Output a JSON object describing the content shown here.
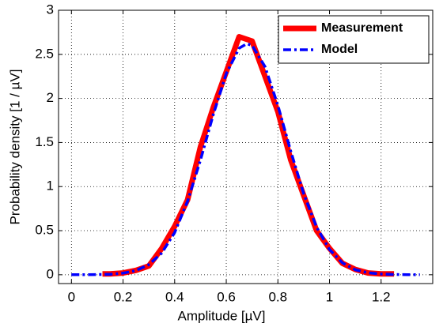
{
  "chart_data": {
    "type": "line",
    "xlabel": "Amplitude  [µV]",
    "ylabel": "Probability density  [1 / µV]",
    "xlim": [
      -0.05,
      1.4
    ],
    "xticks": [
      0,
      0.2,
      0.4,
      0.6,
      0.8,
      1,
      1.2
    ],
    "ylim": [
      -0.1,
      3
    ],
    "yticks": [
      0,
      0.5,
      1,
      1.5,
      2,
      2.5,
      3
    ],
    "grid": true,
    "legend": "upper right",
    "series": [
      {
        "name": "Measurement",
        "color": "#ff0000",
        "linestyle": "solid",
        "x": [
          0.12,
          0.15,
          0.2,
          0.25,
          0.3,
          0.35,
          0.4,
          0.45,
          0.5,
          0.55,
          0.6,
          0.65,
          0.7,
          0.75,
          0.8,
          0.85,
          0.9,
          0.95,
          1.0,
          1.05,
          1.1,
          1.15,
          1.2,
          1.25
        ],
        "values": [
          0.01,
          0.01,
          0.02,
          0.05,
          0.1,
          0.3,
          0.55,
          0.85,
          1.45,
          1.9,
          2.3,
          2.7,
          2.65,
          2.25,
          1.85,
          1.3,
          0.9,
          0.5,
          0.3,
          0.13,
          0.06,
          0.02,
          0.01,
          0.01
        ]
      },
      {
        "name": "Model",
        "color": "#0000ff",
        "linestyle": "dashdot",
        "x": [
          0,
          0.05,
          0.1,
          0.15,
          0.2,
          0.25,
          0.3,
          0.35,
          0.4,
          0.45,
          0.5,
          0.55,
          0.6,
          0.65,
          0.68,
          0.7,
          0.75,
          0.8,
          0.85,
          0.9,
          0.95,
          1.0,
          1.05,
          1.1,
          1.15,
          1.2,
          1.25,
          1.3,
          1.35
        ],
        "values": [
          0,
          0,
          0.002,
          0.006,
          0.018,
          0.048,
          0.115,
          0.247,
          0.479,
          0.834,
          1.3,
          1.82,
          2.28,
          2.57,
          2.62,
          2.6,
          2.36,
          1.92,
          1.4,
          0.919,
          0.541,
          0.286,
          0.136,
          0.057,
          0.022,
          0.008,
          0.003,
          0.001,
          0
        ]
      }
    ]
  }
}
